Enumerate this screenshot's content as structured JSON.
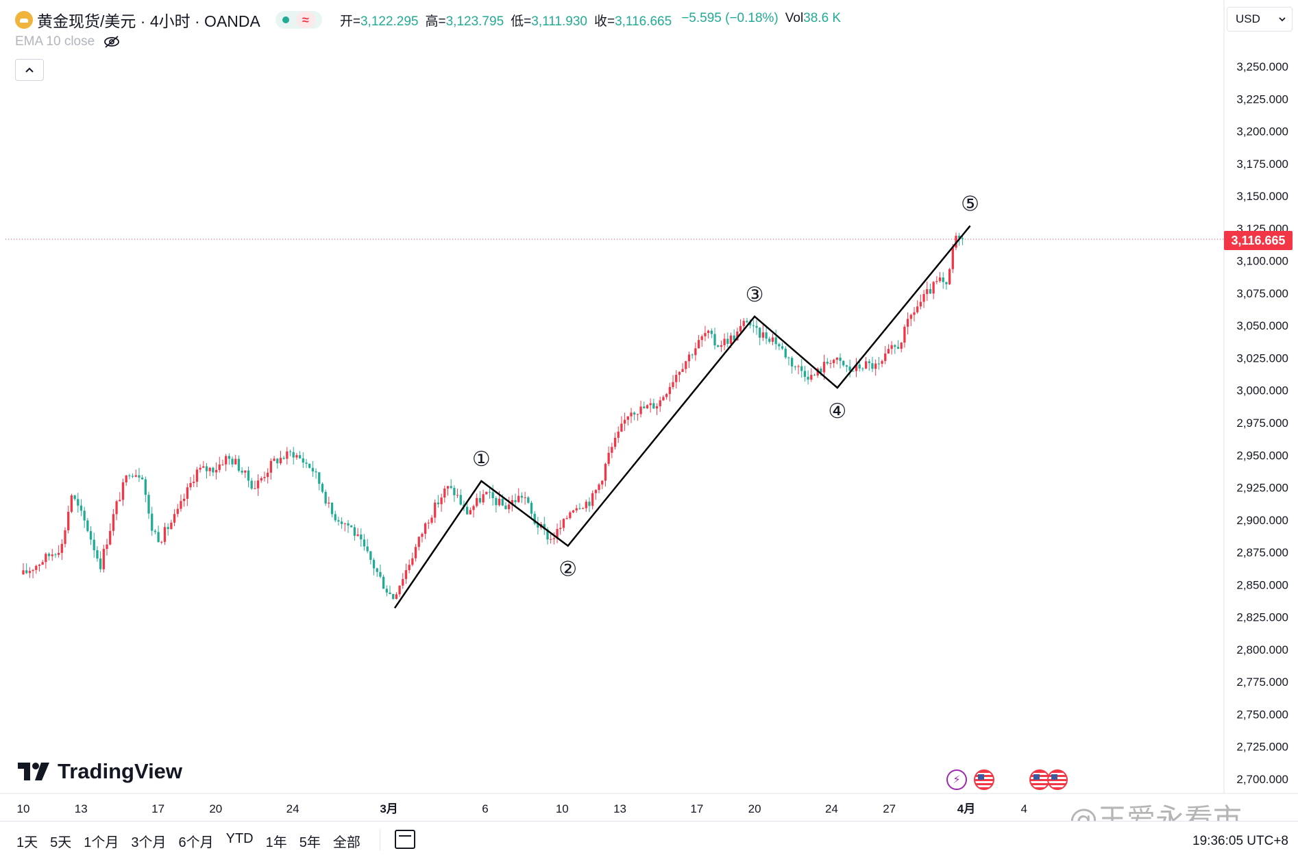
{
  "legend": {
    "symbol": "黄金现货/美元 · 4小时 · OANDA",
    "wave_icon": "≈",
    "open_label": "开=",
    "open": "3,122.295",
    "high_label": "高=",
    "high": "3,123.795",
    "low_label": "低=",
    "low": "3,111.930",
    "close_label": "收=",
    "close": "3,116.665",
    "change": "−5.595 (−0.18%)",
    "vol_label": "Vol",
    "vol": "38.6 K"
  },
  "indicator": {
    "label": "EMA 10 close",
    "icon": "eye-off-icon"
  },
  "currency": "USD",
  "last_price": "3,116.665",
  "logo_text": "TradingView",
  "ranges": [
    "1天",
    "5天",
    "1个月",
    "3个月",
    "6个月",
    "YTD",
    "1年",
    "5年",
    "全部"
  ],
  "clock": "19:36:05 UTC+8",
  "watermark": "@王爱永看市",
  "colors": {
    "up": "#f23645",
    "down": "#22ab94",
    "price_line": "#f23645",
    "wave": "#000000"
  },
  "chart_data": {
    "type": "candlestick",
    "timeframe": "4h",
    "ylim": [
      2700,
      3265
    ],
    "y_ticks": [
      "3,250.000",
      "3,225.000",
      "3,200.000",
      "3,175.000",
      "3,150.000",
      "3,125.000",
      "3,100.000",
      "3,075.000",
      "3,050.000",
      "3,025.000",
      "3,000.000",
      "2,975.000",
      "2,950.000",
      "2,925.000",
      "2,900.000",
      "2,875.000",
      "2,850.000",
      "2,825.000",
      "2,800.000",
      "2,775.000",
      "2,750.000",
      "2,725.000",
      "2,700.000"
    ],
    "y_tick_values": [
      3250,
      3225,
      3200,
      3175,
      3150,
      3125,
      3100,
      3075,
      3050,
      3025,
      3000,
      2975,
      2950,
      2925,
      2900,
      2875,
      2850,
      2825,
      2800,
      2775,
      2750,
      2725,
      2700
    ],
    "x_ticks": [
      {
        "label": "10",
        "t": 0
      },
      {
        "label": "13",
        "t": 3
      },
      {
        "label": "17",
        "t": 7
      },
      {
        "label": "20",
        "t": 10
      },
      {
        "label": "24",
        "t": 14
      },
      {
        "label": "3月",
        "t": 19,
        "bold": true
      },
      {
        "label": "6",
        "t": 24
      },
      {
        "label": "10",
        "t": 28
      },
      {
        "label": "13",
        "t": 31
      },
      {
        "label": "17",
        "t": 35
      },
      {
        "label": "20",
        "t": 38
      },
      {
        "label": "24",
        "t": 42
      },
      {
        "label": "27",
        "t": 45
      },
      {
        "label": "4月",
        "t": 49,
        "bold": true
      },
      {
        "label": "4",
        "t": 52
      }
    ],
    "anchors": [
      [
        0,
        2858
      ],
      [
        2,
        2880
      ],
      [
        2.5,
        2920
      ],
      [
        3.3,
        2895
      ],
      [
        4,
        2865
      ],
      [
        4.8,
        2910
      ],
      [
        5.5,
        2938
      ],
      [
        6.2,
        2935
      ],
      [
        6.6,
        2895
      ],
      [
        7.1,
        2885
      ],
      [
        8,
        2905
      ],
      [
        9,
        2938
      ],
      [
        10,
        2940
      ],
      [
        10.5,
        2948
      ],
      [
        11,
        2945
      ],
      [
        12,
        2925
      ],
      [
        13,
        2945
      ],
      [
        14,
        2952
      ],
      [
        15,
        2940
      ],
      [
        15.5,
        2925
      ],
      [
        16,
        2905
      ],
      [
        17,
        2895
      ],
      [
        18,
        2870
      ],
      [
        18.8,
        2848
      ],
      [
        19.2,
        2840
      ],
      [
        20,
        2865
      ],
      [
        21,
        2900
      ],
      [
        22,
        2925
      ],
      [
        22.5,
        2920
      ],
      [
        23,
        2905
      ],
      [
        24,
        2920
      ],
      [
        25,
        2910
      ],
      [
        26,
        2920
      ],
      [
        26.5,
        2900
      ],
      [
        27.4,
        2885
      ],
      [
        28,
        2895
      ],
      [
        28.5,
        2910
      ],
      [
        29.5,
        2915
      ],
      [
        30,
        2930
      ],
      [
        30.4,
        2950
      ],
      [
        31,
        2968
      ],
      [
        31.5,
        2985
      ],
      [
        32,
        2985
      ],
      [
        33,
        2990
      ],
      [
        34,
        3015
      ],
      [
        35,
        3035
      ],
      [
        35.5,
        3045
      ],
      [
        36,
        3035
      ],
      [
        37,
        3042
      ],
      [
        37.6,
        3055
      ],
      [
        38,
        3045
      ],
      [
        39,
        3040
      ],
      [
        40,
        3020
      ],
      [
        41,
        3010
      ],
      [
        42,
        3025
      ],
      [
        43,
        3015
      ],
      [
        43.7,
        3020
      ],
      [
        44.5,
        3018
      ],
      [
        45,
        3030
      ],
      [
        45.5,
        3035
      ],
      [
        46.2,
        3060
      ],
      [
        47,
        3075
      ],
      [
        47.6,
        3085
      ],
      [
        48,
        3078
      ],
      [
        48.3,
        3110
      ],
      [
        48.6,
        3122
      ],
      [
        48.8,
        3116.665
      ]
    ],
    "last_price": 3116.665,
    "elliott_wave": {
      "points": [
        {
          "label": "",
          "t": 19.3,
          "y": 2832
        },
        {
          "label": "1",
          "t": 23.8,
          "y": 2930
        },
        {
          "label": "2",
          "t": 28.3,
          "y": 2880
        },
        {
          "label": "3",
          "t": 38.0,
          "y": 3057
        },
        {
          "label": "4",
          "t": 42.3,
          "y": 3002
        },
        {
          "label": "5",
          "t": 49.2,
          "y": 3127
        }
      ],
      "label_glyphs": [
        "",
        "①",
        "②",
        "③",
        "④",
        "⑤"
      ]
    }
  }
}
